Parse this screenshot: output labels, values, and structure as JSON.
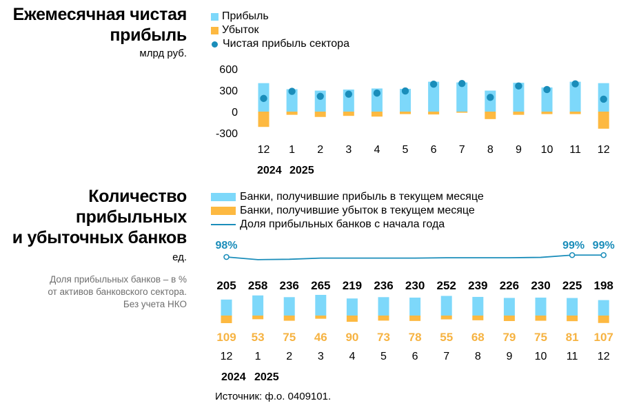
{
  "colors": {
    "profit": "#7dd8fa",
    "loss": "#fdb941",
    "net": "#1a8dba",
    "share_line": "#1a8dba",
    "loss_label": "#f6b342",
    "share_label": "#1a8dba"
  },
  "charts": {
    "top": {
      "title_line1": "Ежемесячная чистая",
      "title_line2": "прибыль",
      "unit": "млрд руб.",
      "legend": [
        "Прибыль",
        "Убыток",
        "Чистая прибыль сектора"
      ]
    },
    "bottom": {
      "title_line1": "Количество",
      "title_line2": "прибыльных",
      "title_line3": "и убыточных банков",
      "unit": "ед.",
      "note_line1": "Доля прибыльных банков – в %",
      "note_line2": "от активов банковского сектора.",
      "note_line3": "Без учета НКО",
      "legend": [
        "Банки, получившие прибыль в текущем месяце",
        "Банки, получившие убыток в текущем месяце",
        "Доля прибыльных банков с начала года"
      ]
    }
  },
  "source": "Источник: ф.о. 0409101.",
  "chart_data": [
    {
      "type": "bar",
      "categories": [
        "12",
        "1",
        "2",
        "3",
        "4",
        "5",
        "6",
        "7",
        "8",
        "9",
        "10",
        "11",
        "12"
      ],
      "year_labels": [
        "2024",
        "2025"
      ],
      "series": [
        {
          "name": "Прибыль",
          "values": [
            400,
            315,
            295,
            310,
            325,
            320,
            420,
            410,
            295,
            405,
            340,
            420,
            400
          ]
        },
        {
          "name": "Убыток",
          "values": [
            -215,
            -45,
            -75,
            -60,
            -70,
            -35,
            -40,
            -15,
            -105,
            -45,
            -35,
            -35,
            -240
          ]
        },
        {
          "name": "Чистая прибыль сектора",
          "values": [
            185,
            285,
            215,
            245,
            260,
            290,
            385,
            395,
            200,
            360,
            310,
            390,
            175
          ]
        }
      ],
      "yticks": [
        "600",
        "300",
        "0",
        "-300"
      ],
      "ylim": [
        -300,
        600
      ]
    },
    {
      "type": "bar",
      "categories": [
        "12",
        "1",
        "2",
        "3",
        "4",
        "5",
        "6",
        "7",
        "8",
        "9",
        "10",
        "11",
        "12"
      ],
      "year_labels": [
        "2024",
        "2025"
      ],
      "series": [
        {
          "name": "Банки, получившие прибыль в текущем месяце",
          "values": [
            205,
            258,
            236,
            265,
            219,
            236,
            230,
            252,
            239,
            226,
            230,
            225,
            198
          ]
        },
        {
          "name": "Банки, получившие убыток в текущем месяце",
          "values": [
            109,
            53,
            75,
            46,
            90,
            73,
            78,
            55,
            68,
            79,
            75,
            81,
            107
          ]
        },
        {
          "name": "Доля прибыльных банков с начала года",
          "values": [
            98,
            97.3,
            97.4,
            97.7,
            97.7,
            97.7,
            97.7,
            97.8,
            97.8,
            97.8,
            97.9,
            98.5,
            98.5
          ]
        }
      ],
      "share_labels": [
        {
          "index": 0,
          "text": "98%"
        },
        {
          "index": 11,
          "text": "99%"
        },
        {
          "index": 12,
          "text": "99%"
        }
      ]
    }
  ]
}
